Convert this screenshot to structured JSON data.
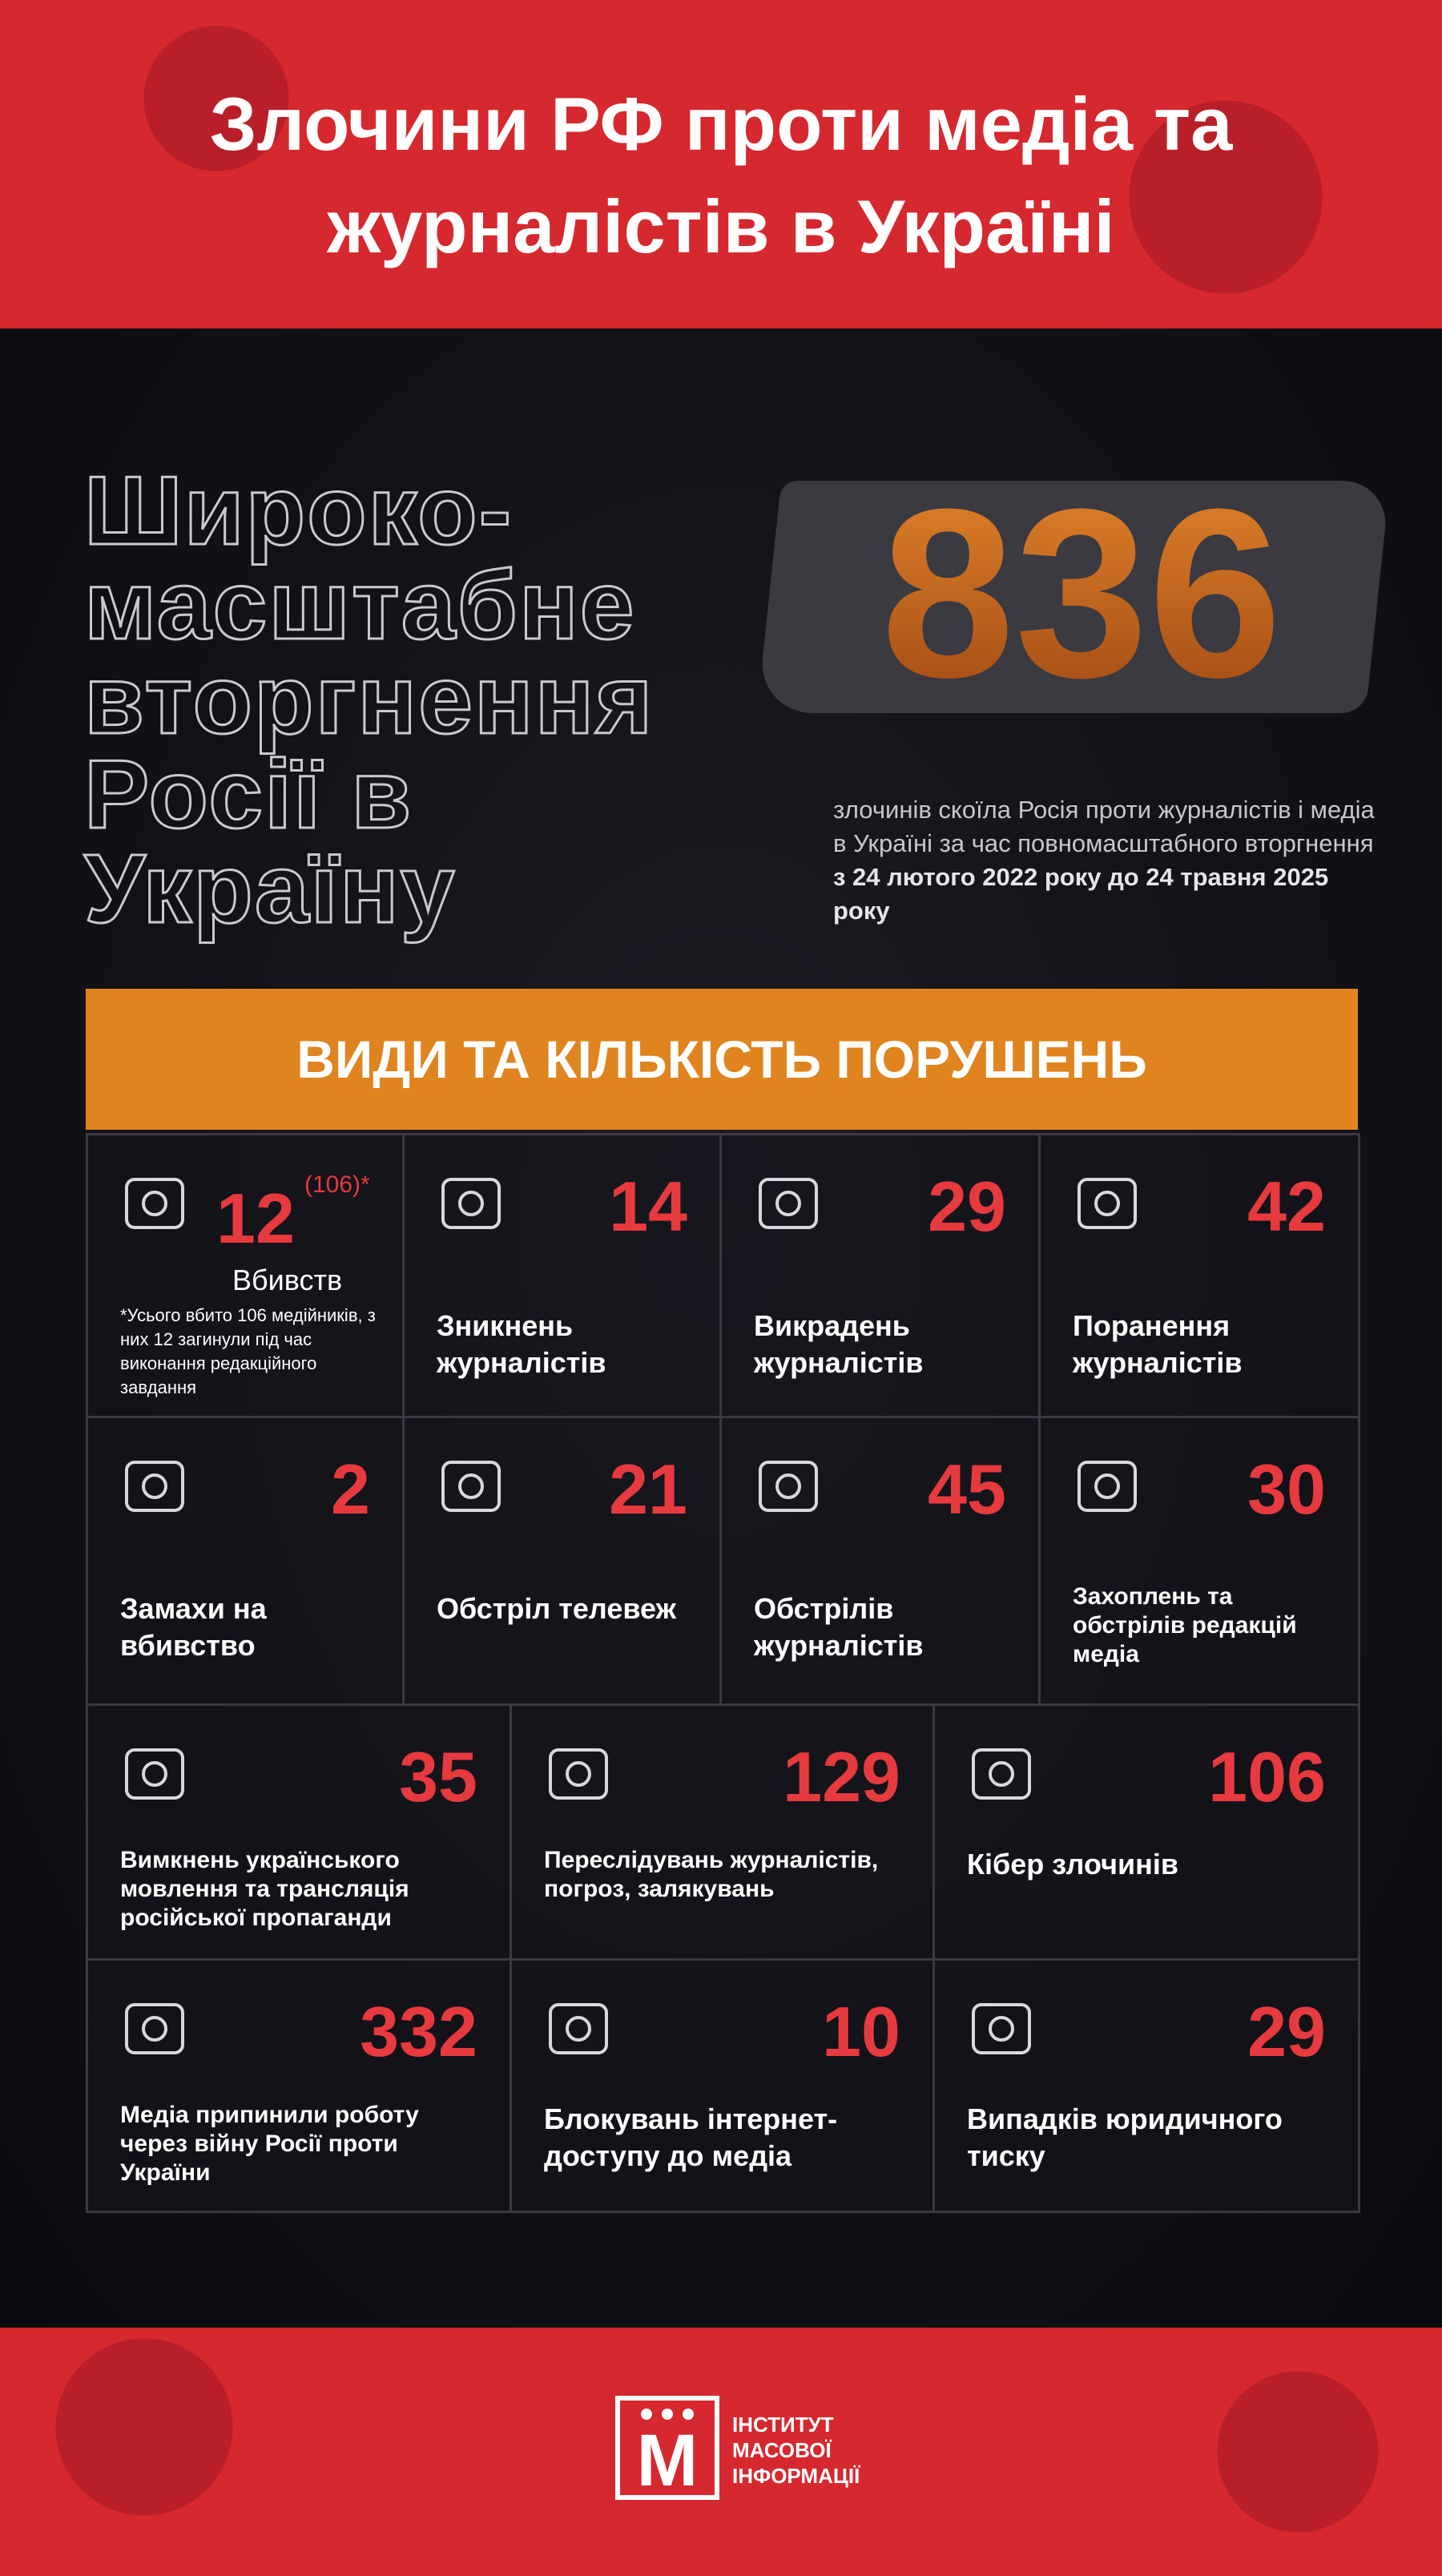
{
  "header": {
    "title_lines": [
      "Злочини РФ проти медіа та",
      "журналістів в Україні"
    ]
  },
  "hero": {
    "outline_lines": [
      "Широко-",
      "масштабне",
      "вторгнення",
      "Росії в",
      "Україну"
    ],
    "total": "836",
    "description": "злочинів скоїла Росія проти журналістів і медіа в Україні за час повномасштабного вторгнення ",
    "description_bold": "з 24 лютого 2022 року до 24 травня 2025 року"
  },
  "section": {
    "title": "ВИДИ ТА КІЛЬКІСТЬ ПОРУШЕНЬ"
  },
  "cells": [
    {
      "number": "12",
      "sup": "(106)*",
      "label": "Вбивств",
      "note": "*Усього вбито 106 медійників, з них 12 загинули під час виконання редакційного завдання"
    },
    {
      "number": "14",
      "label": "Зникнень журналістів"
    },
    {
      "number": "29",
      "label": "Викрадень журналістів"
    },
    {
      "number": "42",
      "label": "Поранення журналістів"
    },
    {
      "number": "2",
      "label": "Замахи на вбивство"
    },
    {
      "number": "21",
      "label": "Обстріл телевеж"
    },
    {
      "number": "45",
      "label": "Обстрілів журналістів"
    },
    {
      "number": "30",
      "label": "Захоплень та обстрілів редакцій медіа"
    },
    {
      "number": "35",
      "label": "Вимкнень українського мовлення та трансляція російської пропаганди"
    },
    {
      "number": "129",
      "label": "Переслідувань журналістів, погроз, залякувань"
    },
    {
      "number": "106",
      "label": "Кібер злочинів"
    },
    {
      "number": "332",
      "label": "Медіа припинили роботу через війну Росії проти України"
    },
    {
      "number": "10",
      "label": "Блокувань інтернет-доступу до медіа"
    },
    {
      "number": "29",
      "label": "Випадків юридичного тиску"
    }
  ],
  "footer": {
    "logo_letter": "М",
    "logo_lines": [
      "ІНСТИТУТ",
      "МАСОВОЇ",
      "ІНФОРМАЦІЇ"
    ]
  }
}
